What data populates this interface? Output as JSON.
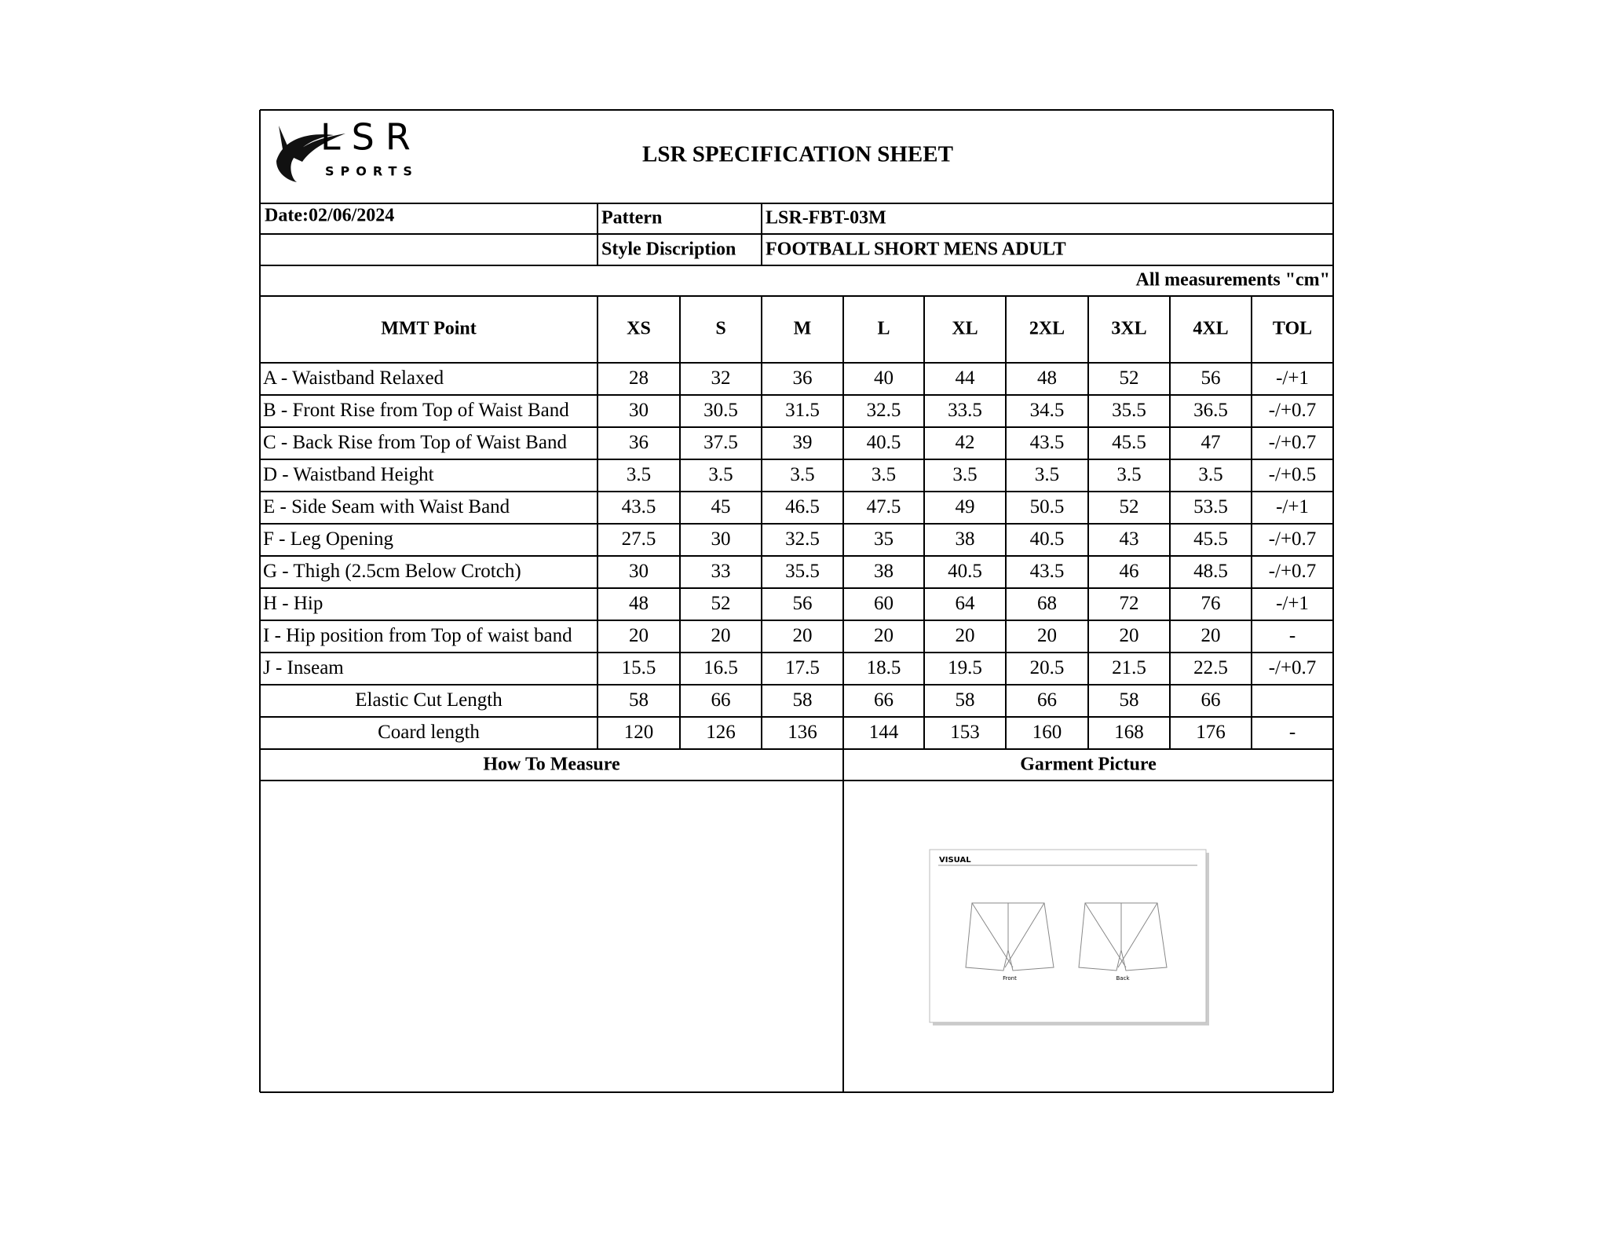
{
  "header": {
    "logo_text": "LSR",
    "logo_sub": "SPORTS",
    "title": "LSR SPECIFICATION SHEET"
  },
  "info": {
    "date": "Date:02/06/2024",
    "pattern_label": "Pattern",
    "pattern": "LSR-FBT-03M",
    "style_label": "Style Discription",
    "style": "FOOTBALL SHORT MENS ADULT"
  },
  "note": "All measurements \"cm\"",
  "table": {
    "columns": [
      "MMT Point",
      "XS",
      "S",
      "M",
      "L",
      "XL",
      "2XL",
      "3XL",
      "4XL",
      "TOL"
    ],
    "rows": [
      [
        "A - Waistband Relaxed",
        "28",
        "32",
        "36",
        "40",
        "44",
        "48",
        "52",
        "56",
        "-/+1"
      ],
      [
        "B - Front Rise from Top of Waist Band",
        "30",
        "30.5",
        "31.5",
        "32.5",
        "33.5",
        "34.5",
        "35.5",
        "36.5",
        "-/+0.7"
      ],
      [
        "C - Back Rise from Top of Waist Band",
        "36",
        "37.5",
        "39",
        "40.5",
        "42",
        "43.5",
        "45.5",
        "47",
        "-/+0.7"
      ],
      [
        "D - Waistband Height",
        "3.5",
        "3.5",
        "3.5",
        "3.5",
        "3.5",
        "3.5",
        "3.5",
        "3.5",
        "-/+0.5"
      ],
      [
        "E - Side Seam with Waist Band",
        "43.5",
        "45",
        "46.5",
        "47.5",
        "49",
        "50.5",
        "52",
        "53.5",
        "-/+1"
      ],
      [
        "F - Leg Opening",
        "27.5",
        "30",
        "32.5",
        "35",
        "38",
        "40.5",
        "43",
        "45.5",
        "-/+0.7"
      ],
      [
        "G - Thigh (2.5cm Below Crotch)",
        "30",
        "33",
        "35.5",
        "38",
        "40.5",
        "43.5",
        "46",
        "48.5",
        "-/+0.7"
      ],
      [
        "H - Hip",
        "48",
        "52",
        "56",
        "60",
        "64",
        "68",
        "72",
        "76",
        "-/+1"
      ],
      [
        "I - Hip position from Top of waist band",
        "20",
        "20",
        "20",
        "20",
        "20",
        "20",
        "20",
        "20",
        "-"
      ],
      [
        "J - Inseam",
        "15.5",
        "16.5",
        "17.5",
        "18.5",
        "19.5",
        "20.5",
        "21.5",
        "22.5",
        "-/+0.7"
      ],
      [
        "Elastic Cut Length",
        "58",
        "66",
        "58",
        "66",
        "58",
        "66",
        "58",
        "66",
        ""
      ],
      [
        "Coard length",
        "120",
        "126",
        "136",
        "144",
        "153",
        "160",
        "168",
        "176",
        "-"
      ]
    ]
  },
  "sections": {
    "how_to_measure": "How To Measure",
    "garment_picture": "Garment Picture"
  },
  "garment_image": {
    "title": "VISUAL",
    "front": "Front",
    "back": "Back"
  }
}
